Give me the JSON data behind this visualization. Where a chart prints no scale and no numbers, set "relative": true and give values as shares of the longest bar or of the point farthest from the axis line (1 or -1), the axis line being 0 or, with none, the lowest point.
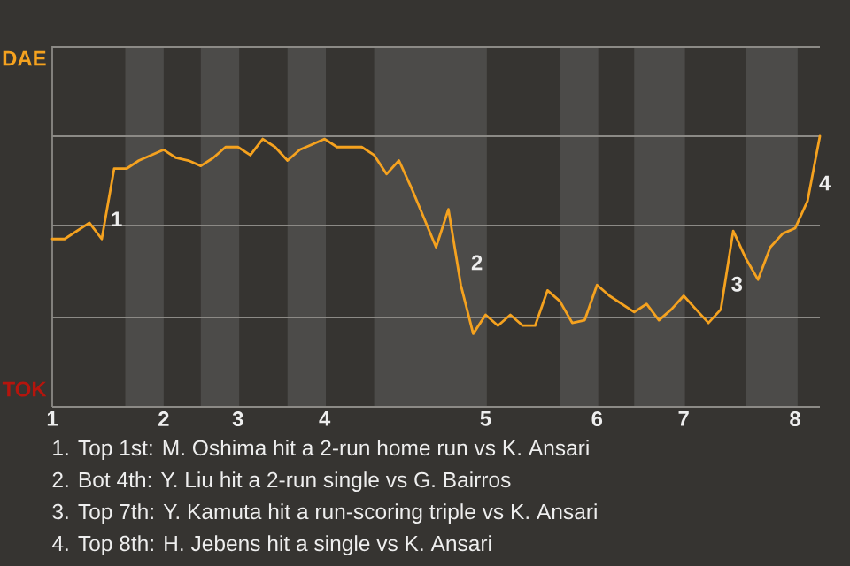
{
  "chart_data": {
    "type": "line",
    "relative": true,
    "ref_lines": [
      {
        "axis": "y",
        "value": 0.33,
        "color": "#8c8a86"
      },
      {
        "axis": "y",
        "value": 0.67,
        "color": "#8c8a86"
      },
      {
        "axis": "y",
        "value": 1,
        "color": "#8c8a86"
      },
      {
        "axis": "y",
        "value": 1.33,
        "color": "#8c8a86"
      }
    ],
    "categories": [
      "1",
      null,
      null,
      null,
      null,
      null,
      null,
      null,
      null,
      "2",
      null,
      null,
      null,
      null,
      null,
      "3",
      null,
      null,
      null,
      null,
      null,
      null,
      "4",
      null,
      null,
      null,
      null,
      null,
      null,
      null,
      null,
      null,
      null,
      null,
      null,
      "5",
      null,
      null,
      null,
      null,
      null,
      null,
      null,
      null,
      "6",
      null,
      null,
      null,
      null,
      null,
      null,
      "7",
      null,
      null,
      null,
      null,
      null,
      null,
      null,
      null,
      "8",
      null,
      null
    ],
    "series": [
      {
        "color": "#f5a21f",
        "values": [
          0.62,
          0.62,
          0.65,
          0.68,
          0.62,
          0.88,
          0.88,
          0.91,
          0.93,
          0.95,
          0.92,
          0.91,
          0.89,
          0.92,
          0.96,
          0.96,
          0.93,
          0.99,
          0.96,
          0.91,
          0.95,
          0.97,
          0.99,
          0.96,
          0.96,
          0.96,
          0.93,
          0.86,
          0.91,
          0.81,
          0.7,
          0.59,
          0.73,
          0.45,
          0.27,
          0.34,
          0.3,
          0.34,
          0.3,
          0.3,
          0.43,
          0.39,
          0.31,
          0.32,
          0.45,
          0.41,
          0.38,
          0.35,
          0.38,
          0.32,
          0.36,
          0.41,
          0.36,
          0.31,
          0.36,
          0.65,
          0.55,
          0.47,
          0.59,
          0.64,
          0.66,
          0.76,
          1
        ]
      }
    ],
    "annotations": [
      "DAE",
      "TOK",
      "1",
      "2",
      "3",
      "4",
      "1. Top 1st: M. Oshima hit a 2-run home run vs K. Ansari",
      "2. Bot 4th: Y. Liu hit a 2-run single vs G. Bairros",
      "3. Top 7th: Y. Kamuta hit a run-scoring triple vs K. Ansari",
      "4. Top 8th: H. Jebens hit a single vs K. Ansari"
    ]
  }
}
